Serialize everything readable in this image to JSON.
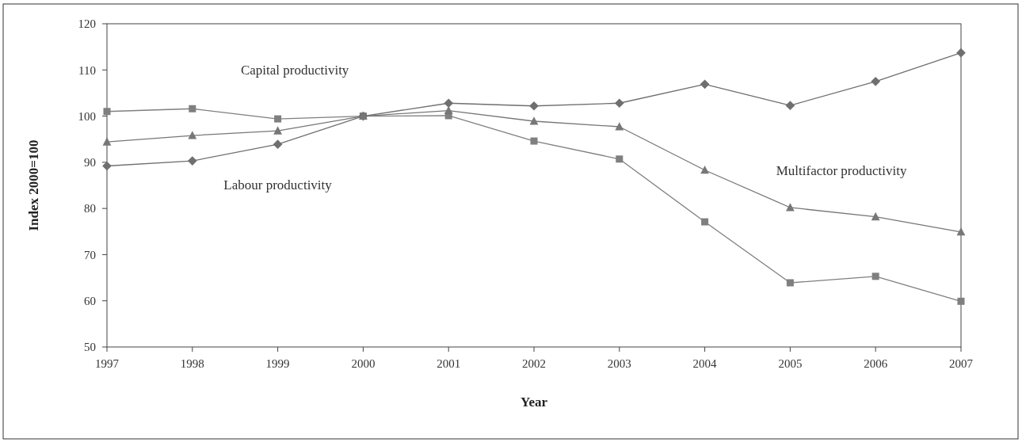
{
  "chart_data": {
    "type": "line",
    "xlabel": "Year",
    "ylabel": "Index 2000=100",
    "x": [
      1997,
      1998,
      1999,
      2000,
      2001,
      2002,
      2003,
      2004,
      2005,
      2006,
      2007
    ],
    "xlim": [
      1997,
      2007
    ],
    "xticks": [
      1997,
      1998,
      1999,
      2000,
      2001,
      2002,
      2003,
      2004,
      2005,
      2006,
      2007
    ],
    "ylim": [
      50,
      120
    ],
    "yticks": [
      50,
      60,
      70,
      80,
      90,
      100,
      110,
      120
    ],
    "grid": false,
    "series": [
      {
        "name": "Capital productivity",
        "color": "#7f7f7f",
        "marker": "square",
        "values": [
          101,
          101.6,
          99.4,
          100,
          100.1,
          94.6,
          90.7,
          77.1,
          63.9,
          65.3,
          59.9
        ]
      },
      {
        "name": "Labour productivity",
        "color": "#6f6f6f",
        "marker": "diamond",
        "values": [
          89.2,
          90.3,
          93.9,
          100,
          102.8,
          102.2,
          102.8,
          106.9,
          102.3,
          107.5,
          113.7
        ]
      },
      {
        "name": "Multifactor productivity",
        "color": "#777777",
        "marker": "triangle",
        "values": [
          94.4,
          95.8,
          96.8,
          100,
          101.2,
          98.9,
          97.7,
          88.3,
          80.2,
          78.2,
          74.9
        ]
      }
    ]
  }
}
